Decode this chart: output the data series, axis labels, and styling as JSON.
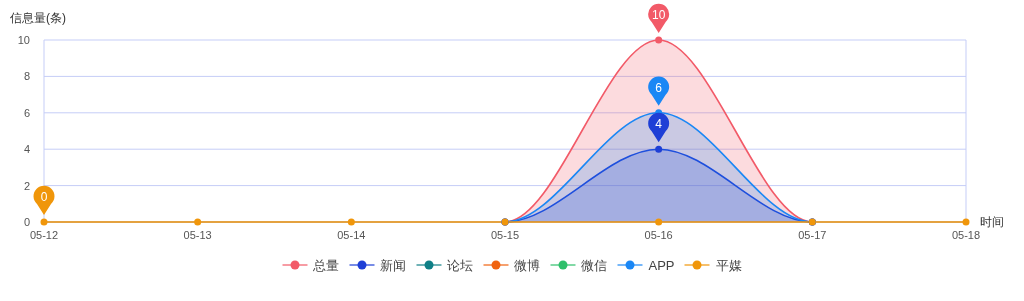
{
  "chart_data": {
    "type": "line",
    "xlabel": "时间",
    "ylabel": "信息量(条)",
    "categories": [
      "05-12",
      "05-13",
      "05-14",
      "05-15",
      "05-16",
      "05-17",
      "05-18"
    ],
    "ylim": [
      0,
      10
    ],
    "yticks": [
      0,
      2,
      4,
      6,
      8,
      10
    ],
    "grid": "y",
    "legend": "bottom",
    "marker": "circle",
    "line_style": "solid",
    "series": [
      {
        "name": "总量",
        "type": "area",
        "color": "#f25a68",
        "values": [
          null,
          null,
          null,
          0,
          10,
          0,
          null
        ],
        "value_labels": [
          null,
          null,
          null,
          null,
          "10",
          null,
          null
        ]
      },
      {
        "name": "新闻",
        "type": "area",
        "color": "#1e3fd6",
        "values": [
          null,
          null,
          null,
          0,
          4,
          0,
          null
        ],
        "value_labels": [
          null,
          null,
          null,
          null,
          "4",
          null,
          null
        ]
      },
      {
        "name": "论坛",
        "type": "line",
        "color": "#0f7f86",
        "values": [
          null,
          null,
          null,
          null,
          null,
          null,
          null
        ]
      },
      {
        "name": "微博",
        "type": "line",
        "color": "#f0630f",
        "values": [
          null,
          null,
          null,
          null,
          null,
          null,
          null
        ]
      },
      {
        "name": "微信",
        "type": "line",
        "color": "#2fbf6b",
        "values": [
          null,
          null,
          null,
          null,
          null,
          null,
          null
        ]
      },
      {
        "name": "APP",
        "type": "area",
        "color": "#1a87f5",
        "values": [
          null,
          null,
          null,
          0,
          6,
          0,
          null
        ],
        "value_labels": [
          null,
          null,
          null,
          null,
          "6",
          null,
          null
        ]
      },
      {
        "name": "平媒",
        "type": "line",
        "color": "#f0960a",
        "values": [
          0,
          0,
          0,
          0,
          0,
          0,
          0
        ],
        "value_labels": [
          "0",
          null,
          null,
          null,
          null,
          null,
          null
        ]
      }
    ]
  }
}
